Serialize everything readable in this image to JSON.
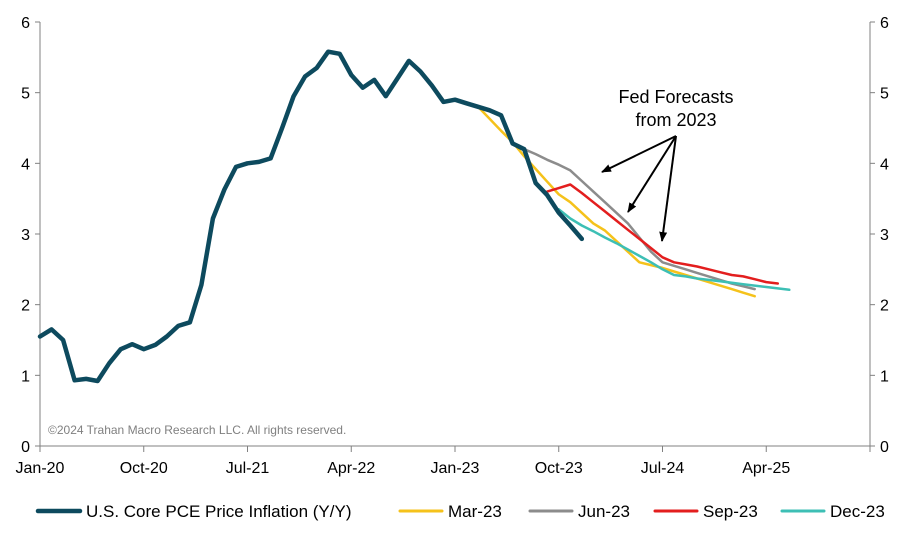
{
  "chart_data": {
    "type": "line",
    "title": "",
    "xlabel": "",
    "ylabel": "",
    "ylim": [
      0,
      6
    ],
    "y_ticks": [
      "0",
      "1",
      "2",
      "3",
      "4",
      "5",
      "6"
    ],
    "x_ticks": [
      "Jan-20",
      "Oct-20",
      "Jul-21",
      "Apr-22",
      "Jan-23",
      "Oct-23",
      "Jul-24",
      "Apr-25"
    ],
    "x_tick_index": [
      0,
      9,
      18,
      27,
      36,
      45,
      54,
      63
    ],
    "x_max_index": 72,
    "grid": false,
    "legend_position": "bottom",
    "annotation": {
      "line1": "Fed Forecasts",
      "line2": "from 2023"
    },
    "copyright": "©2024 Trahan Macro Research LLC. All rights reserved.",
    "series": [
      {
        "name": "U.S. Core PCE Price Inflation (Y/Y)",
        "color": "#0d4a5e",
        "width": 4.5,
        "start_index": 0,
        "values": [
          1.55,
          1.65,
          1.5,
          0.93,
          0.95,
          0.92,
          1.17,
          1.37,
          1.44,
          1.37,
          1.43,
          1.55,
          1.7,
          1.75,
          2.28,
          3.22,
          3.63,
          3.95,
          4.0,
          4.02,
          4.07,
          4.5,
          4.95,
          5.23,
          5.35,
          5.58,
          5.55,
          5.25,
          5.07,
          5.18,
          4.95,
          5.2,
          5.45,
          5.3,
          5.1,
          4.87,
          4.9,
          4.85,
          4.8,
          4.75,
          4.68,
          4.28,
          4.2,
          3.72,
          3.55,
          3.3,
          3.12,
          2.93
        ]
      },
      {
        "name": "Mar-23",
        "color": "#f5c21b",
        "width": 2.5,
        "start_index": 38,
        "values": [
          4.8,
          4.63,
          4.46,
          4.3,
          4.1,
          3.92,
          3.74,
          3.56,
          3.45,
          3.3,
          3.15,
          3.05,
          2.9,
          2.75,
          2.6,
          2.56,
          2.52,
          2.47,
          2.42,
          2.37,
          2.32,
          2.27,
          2.22,
          2.17,
          2.12
        ]
      },
      {
        "name": "Jun-23",
        "color": "#8c8c8c",
        "width": 2.5,
        "start_index": 41,
        "values": [
          4.28,
          4.2,
          4.13,
          4.05,
          3.98,
          3.9,
          3.75,
          3.6,
          3.45,
          3.3,
          3.15,
          2.95,
          2.75,
          2.6,
          2.55,
          2.5,
          2.45,
          2.4,
          2.35,
          2.3,
          2.26,
          2.22
        ]
      },
      {
        "name": "Sep-23",
        "color": "#e31e1e",
        "width": 2.5,
        "start_index": 44,
        "values": [
          3.6,
          3.65,
          3.7,
          3.58,
          3.45,
          3.32,
          3.19,
          3.06,
          2.93,
          2.8,
          2.67,
          2.6,
          2.57,
          2.54,
          2.5,
          2.46,
          2.42,
          2.4,
          2.36,
          2.32,
          2.3
        ]
      },
      {
        "name": "Dec-23",
        "color": "#3dbfb5",
        "width": 2.5,
        "start_index": 45,
        "values": [
          3.35,
          3.22,
          3.12,
          3.04,
          2.95,
          2.87,
          2.78,
          2.69,
          2.6,
          2.5,
          2.42,
          2.4,
          2.37,
          2.35,
          2.33,
          2.31,
          2.29,
          2.27,
          2.25,
          2.23,
          2.21
        ]
      }
    ]
  }
}
